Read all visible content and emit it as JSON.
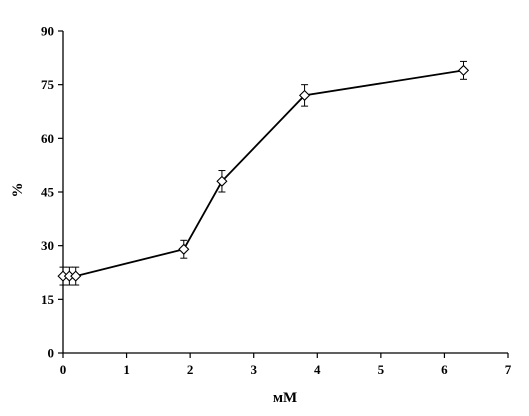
{
  "chart_data": {
    "type": "line",
    "title": "",
    "xlabel": "мМ",
    "ylabel": "%",
    "xlim": [
      0,
      7
    ],
    "ylim": [
      0,
      90
    ],
    "x_ticks": [
      0,
      1,
      2,
      3,
      4,
      5,
      6,
      7
    ],
    "y_ticks": [
      0,
      15,
      30,
      45,
      60,
      75,
      90
    ],
    "grid": false,
    "legend": "none",
    "marker": "open-diamond",
    "line_color": "#000000",
    "series": [
      {
        "x": [
          0.0,
          0.1,
          0.2,
          1.9,
          2.5,
          3.8,
          6.3
        ],
        "y": [
          21.5,
          21.5,
          21.5,
          29,
          48,
          72,
          79
        ],
        "error": [
          2.5,
          2.5,
          2.5,
          2.5,
          3,
          3,
          2.5
        ]
      }
    ]
  }
}
